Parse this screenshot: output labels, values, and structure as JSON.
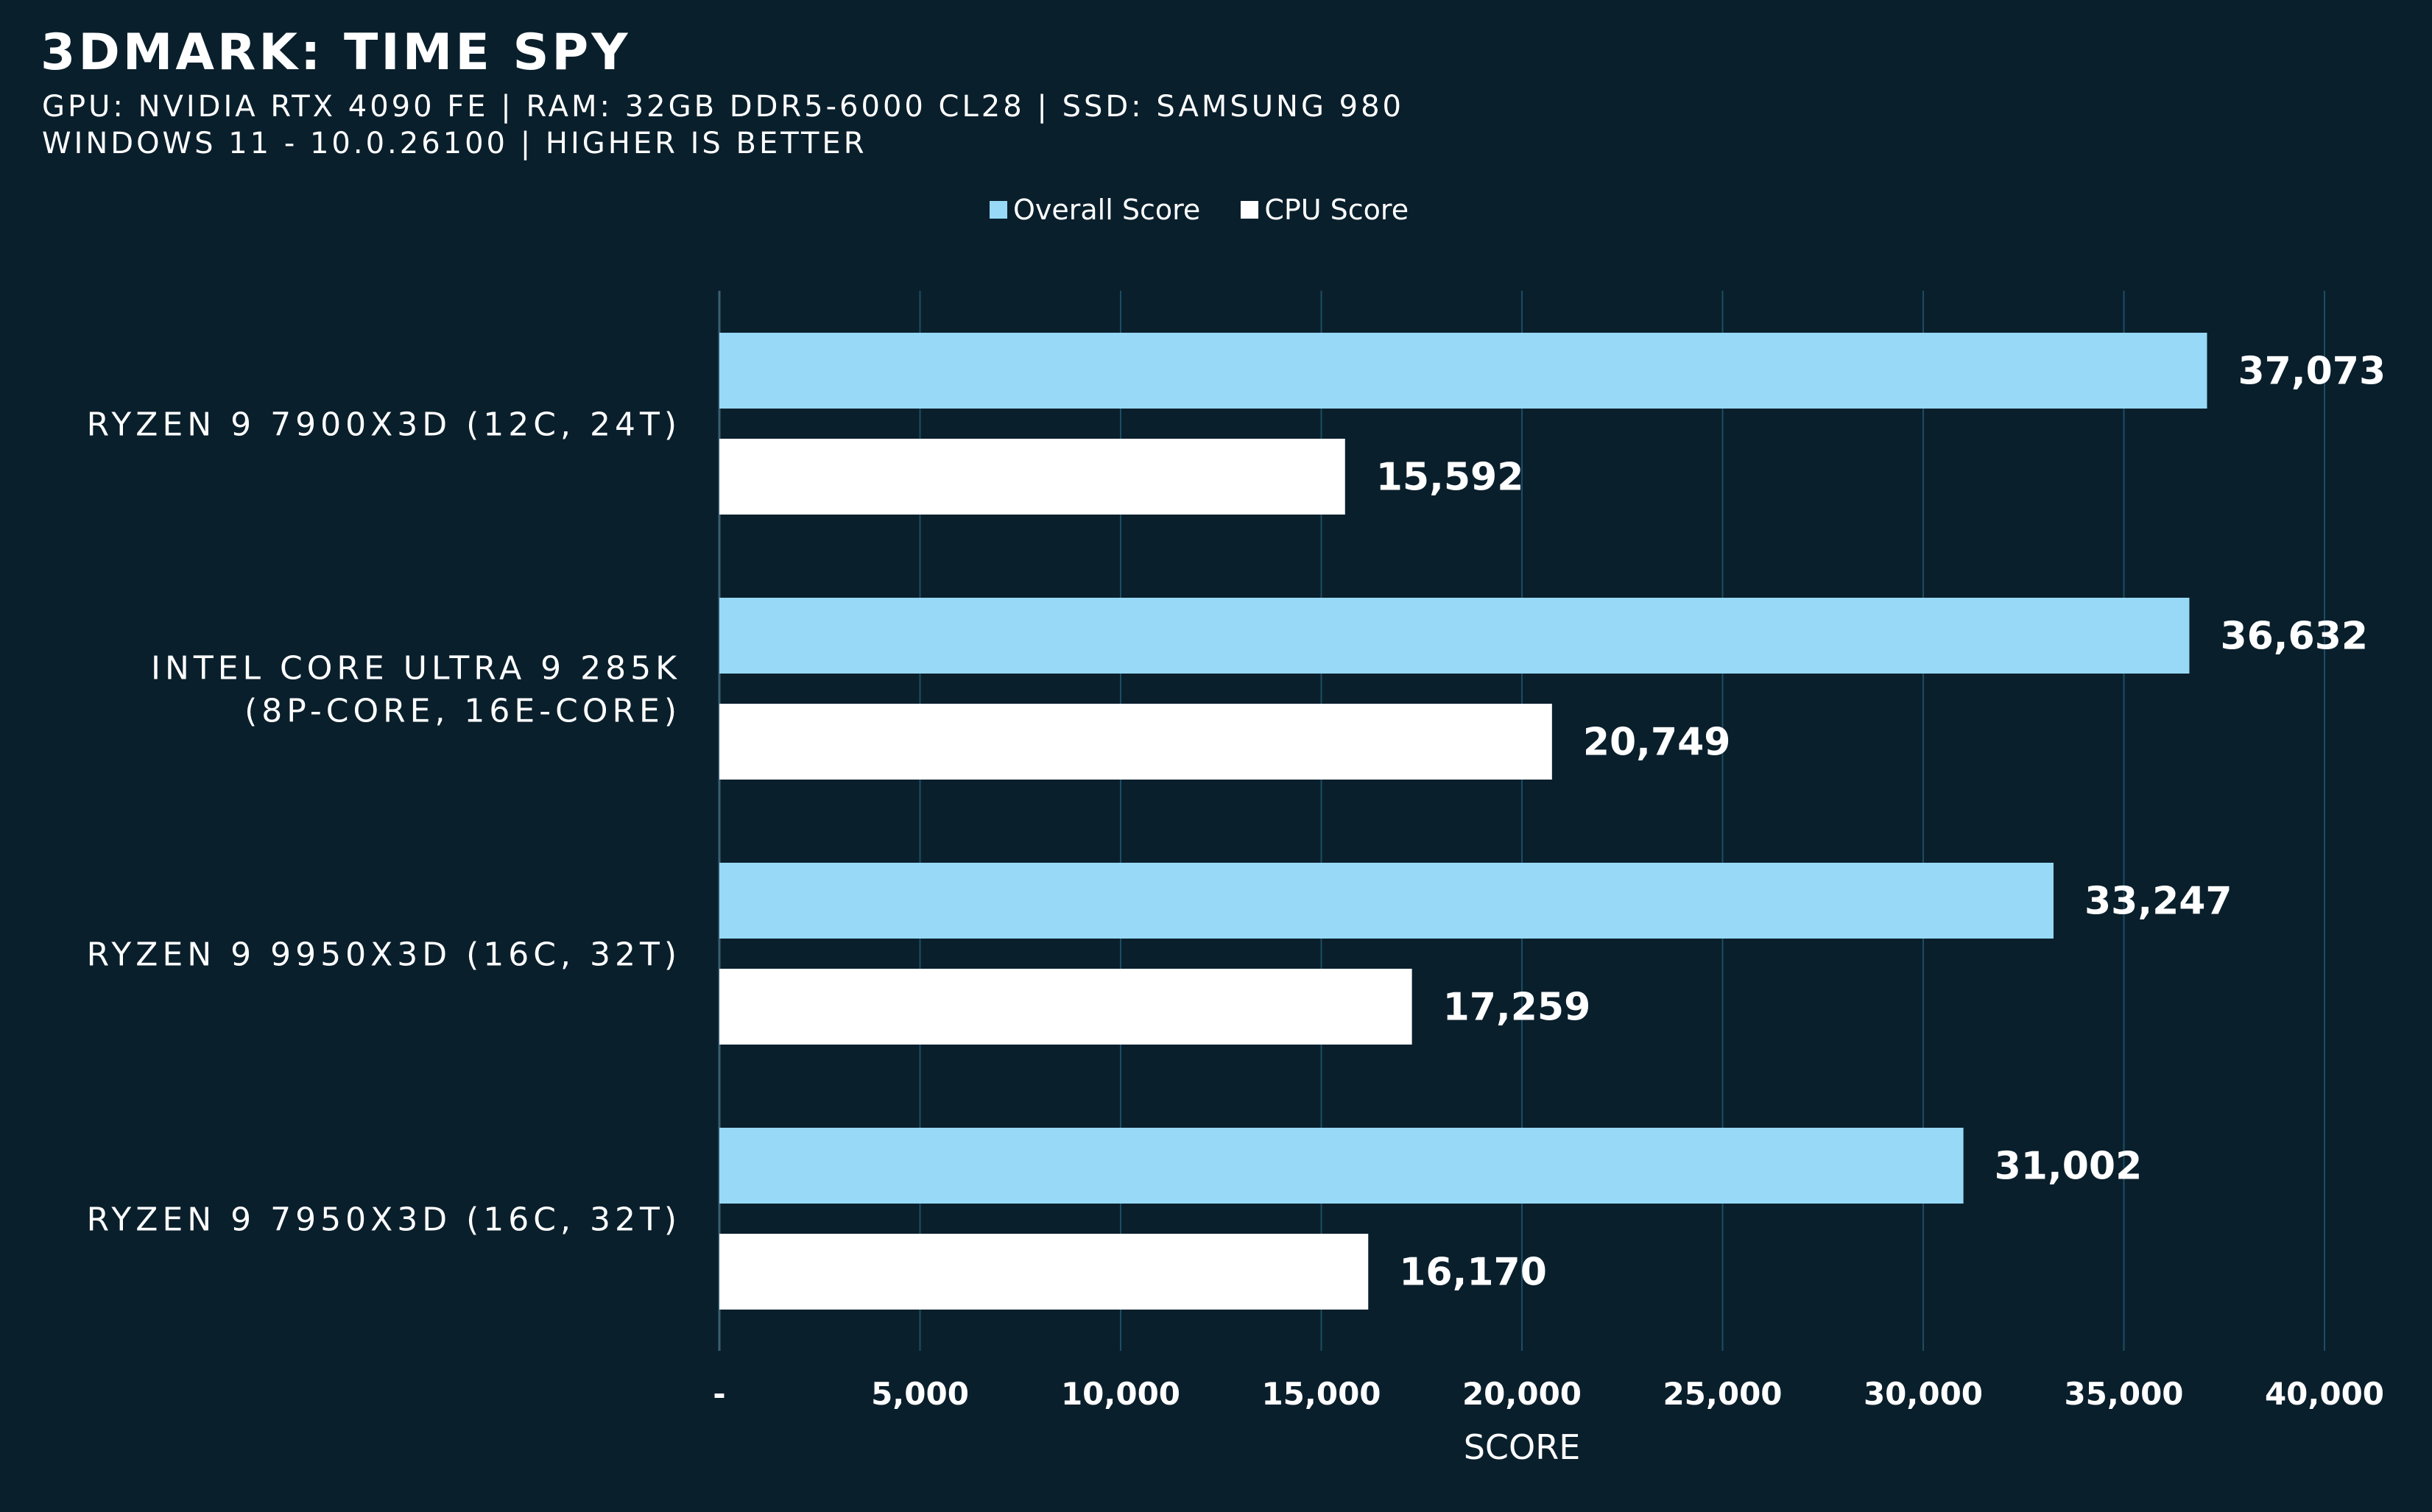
{
  "title": "3DMARK: TIME SPY",
  "subtitle_line1": "GPU: NVIDIA RTX 4090 FE | RAM: 32GB DDR5-6000 CL28 | SSD: SAMSUNG 980",
  "subtitle_line2": "WINDOWS 11 - 10.0.26100 | HIGHER IS BETTER",
  "colors": {
    "background": "#0a1f2c",
    "overall": "#97d9f6",
    "cpu": "#ffffff",
    "grid": "#1b4d63",
    "text": "#ffffff"
  },
  "chart_data": {
    "type": "bar",
    "orientation": "horizontal",
    "categories": [
      [
        "RYZEN 9 7900X3D (12C, 24T)"
      ],
      [
        "INTEL CORE ULTRA 9 285K",
        "(8P-CORE, 16E-CORE)"
      ],
      [
        "RYZEN 9 9950X3D (16C, 32T)"
      ],
      [
        "RYZEN 9 7950X3D (16C, 32T)"
      ]
    ],
    "series": [
      {
        "name": "Overall Score",
        "color": "#97d9f6",
        "values": [
          37073,
          36632,
          33247,
          31002
        ],
        "labels": [
          "37,073",
          "36,632",
          "33,247",
          "31,002"
        ]
      },
      {
        "name": "CPU Score",
        "color": "#ffffff",
        "values": [
          15592,
          20749,
          17259,
          16170
        ],
        "labels": [
          "15,592",
          "20,749",
          "17,259",
          "16,170"
        ]
      }
    ],
    "xlabel": "SCORE",
    "ylabel": "",
    "xlim": [
      0,
      40000
    ],
    "xticks": [
      0,
      5000,
      10000,
      15000,
      20000,
      25000,
      30000,
      35000,
      40000
    ],
    "xtick_labels": [
      "-",
      "5,000",
      "10,000",
      "15,000",
      "20,000",
      "25,000",
      "30,000",
      "35,000",
      "40,000"
    ],
    "grid": true,
    "legend_position": "top-center"
  }
}
